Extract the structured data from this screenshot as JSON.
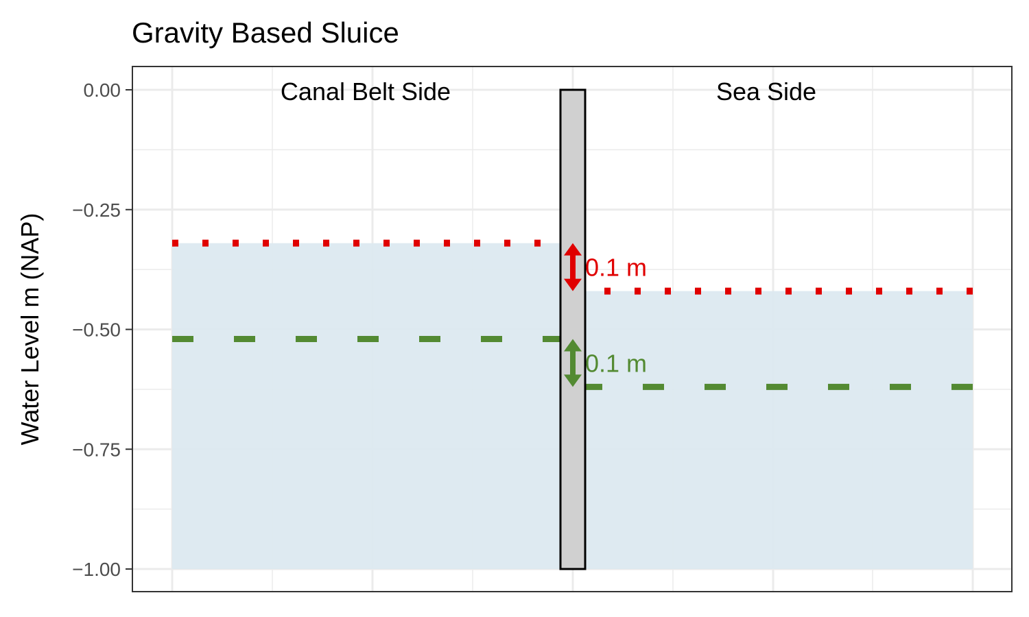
{
  "chart_data": {
    "type": "line",
    "title": "Gravity Based Sluice",
    "ylabel": "Water Level m (NAP)",
    "xlabel": "",
    "ylim": [
      -1.0,
      0.0
    ],
    "yticks": [
      0.0,
      -0.25,
      -0.5,
      -0.75,
      -1.0
    ],
    "ytick_labels": [
      "0.00",
      "−0.25",
      "−0.50",
      "−0.75",
      "−1.00"
    ],
    "grid": true,
    "sides": [
      {
        "label": "Canal Belt Side",
        "water_level": -0.32
      },
      {
        "label": "Sea Side",
        "water_level": -0.42
      }
    ],
    "sluice": {
      "bottom": -1.0,
      "top": 0.0
    },
    "series": [
      {
        "style": "dotted",
        "color": "#e00000",
        "values": [
          -0.32,
          -0.42
        ]
      },
      {
        "style": "dashed",
        "color": "#538a32",
        "values": [
          -0.52,
          -0.62
        ]
      }
    ],
    "annotations": [
      {
        "text": "0.1 m",
        "color": "#e00000",
        "from": -0.32,
        "to": -0.42
      },
      {
        "text": "0.1 m",
        "color": "#538a32",
        "from": -0.52,
        "to": -0.62
      }
    ],
    "colors": {
      "water": "#dce9f0",
      "sluice_fill": "#d0d0d0",
      "grid": "#ebebeb",
      "panel_border": "#333333"
    }
  }
}
